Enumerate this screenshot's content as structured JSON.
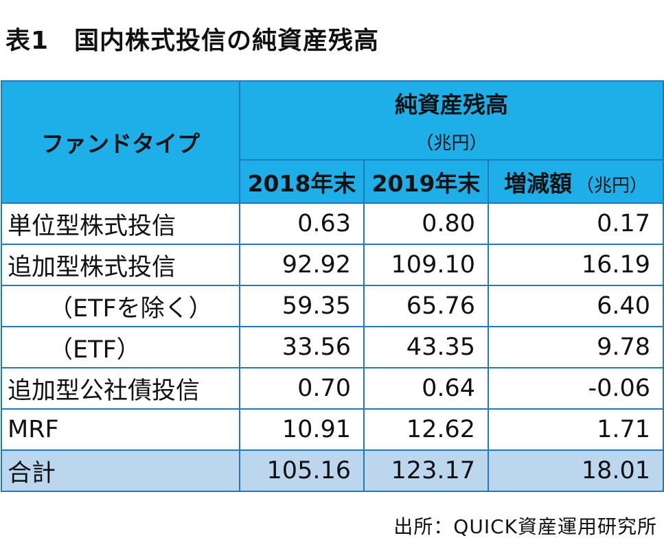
{
  "title": "表1　国内株式投信の純資産残高",
  "table": {
    "header_fund_type": "ファンドタイプ",
    "header_group": "純資産残高",
    "header_group_unit": "（兆円）",
    "col_2018": "2018年末",
    "col_2019": "2019年末",
    "col_change": "増減額",
    "col_change_unit": "（兆円）",
    "rows": [
      {
        "label": "単位型株式投信",
        "v2018": "0.63",
        "v2019": "0.80",
        "change": "0.17"
      },
      {
        "label": "追加型株式投信",
        "v2018": "92.92",
        "v2019": "109.10",
        "change": "16.19"
      },
      {
        "label": "（ETFを除く）",
        "v2018": "59.35",
        "v2019": "65.76",
        "change": "6.40"
      },
      {
        "label": "（ETF）",
        "v2018": "33.56",
        "v2019": "43.35",
        "change": "9.78"
      },
      {
        "label": "追加型公社債投信",
        "v2018": "0.70",
        "v2019": "0.64",
        "change": "-0.06"
      },
      {
        "label": "MRF",
        "v2018": "10.91",
        "v2019": "12.62",
        "change": "1.71"
      },
      {
        "label": "合計",
        "v2018": "105.16",
        "v2019": "123.17",
        "change": "18.01"
      }
    ]
  },
  "source": "出所：QUICK資産運用研究所",
  "colors": {
    "header_bg": "#1eaee8",
    "border": "#1f78c1",
    "total_row_bg": "#bcd6ee"
  },
  "chart_data": {
    "type": "table",
    "title": "表1　国内株式投信の純資産残高",
    "columns": [
      "ファンドタイプ",
      "2018年末",
      "2019年末",
      "増減額（兆円）"
    ],
    "unit": "兆円",
    "rows": [
      [
        "単位型株式投信",
        0.63,
        0.8,
        0.17
      ],
      [
        "追加型株式投信",
        92.92,
        109.1,
        16.19
      ],
      [
        "（ETFを除く）",
        59.35,
        65.76,
        6.4
      ],
      [
        "（ETF）",
        33.56,
        43.35,
        9.78
      ],
      [
        "追加型公社債投信",
        0.7,
        0.64,
        -0.06
      ],
      [
        "MRF",
        10.91,
        12.62,
        1.71
      ],
      [
        "合計",
        105.16,
        123.17,
        18.01
      ]
    ]
  }
}
